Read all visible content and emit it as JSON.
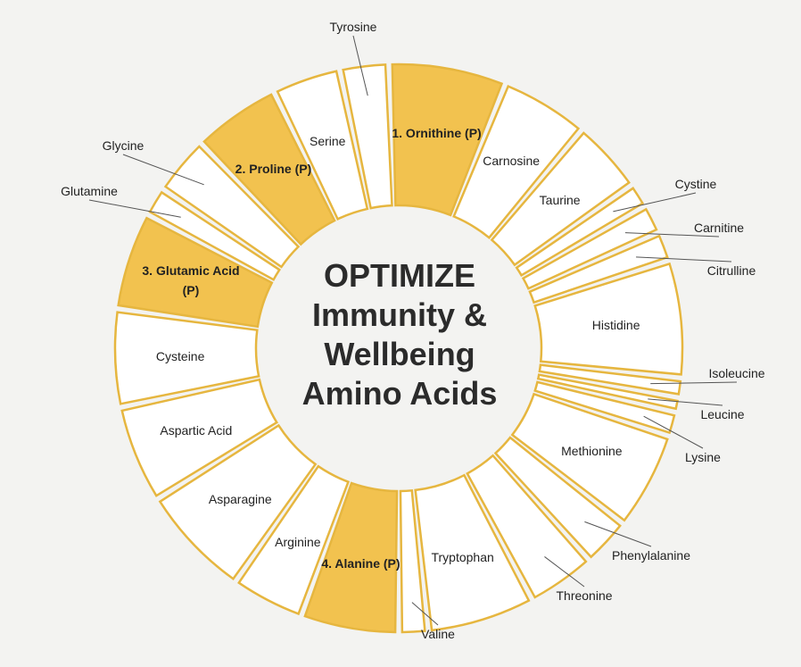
{
  "title_lines": [
    "OPTIMIZE",
    "Immunity &",
    "Wellbeing",
    "Amino Acids"
  ],
  "segments": [
    {
      "label": "Tyrosine",
      "color": "#ffffff"
    },
    {
      "label": "1. Ornithine (P)",
      "color": "#f2c24f"
    },
    {
      "label": "Carnosine",
      "color": "#ffffff"
    },
    {
      "label": "Taurine",
      "color": "#ffffff"
    },
    {
      "label": "Cystine",
      "color": "#ffffff"
    },
    {
      "label": "Carnitine",
      "color": "#ffffff"
    },
    {
      "label": "Citrulline",
      "color": "#ffffff"
    },
    {
      "label": "Histidine",
      "color": "#ffffff"
    },
    {
      "label": "Isoleucine",
      "color": "#ffffff"
    },
    {
      "label": "Leucine",
      "color": "#ffffff"
    },
    {
      "label": "Lysine",
      "color": "#ffffff"
    },
    {
      "label": "Methionine",
      "color": "#ffffff"
    },
    {
      "label": "Phenylalanine",
      "color": "#ffffff"
    },
    {
      "label": "Threonine",
      "color": "#ffffff"
    },
    {
      "label": "Tryptophan",
      "color": "#ffffff"
    },
    {
      "label": "Valine",
      "color": "#ffffff"
    },
    {
      "label": "4. Alanine (P)",
      "color": "#f2c24f"
    },
    {
      "label": "Arginine",
      "color": "#ffffff"
    },
    {
      "label": "Asparagine",
      "color": "#ffffff"
    },
    {
      "label": "Aspartic Acid",
      "color": "#ffffff"
    },
    {
      "label": "Cysteine",
      "color": "#ffffff"
    },
    {
      "label": "3. Glutamic Acid (P)",
      "color": "#f2c24f"
    },
    {
      "label": "Glutamine",
      "color": "#ffffff"
    },
    {
      "label": "Glycine",
      "color": "#ffffff"
    },
    {
      "label": "2. Proline (P)",
      "color": "#f2c24f"
    },
    {
      "label": "Serine",
      "color": "#ffffff"
    }
  ]
}
